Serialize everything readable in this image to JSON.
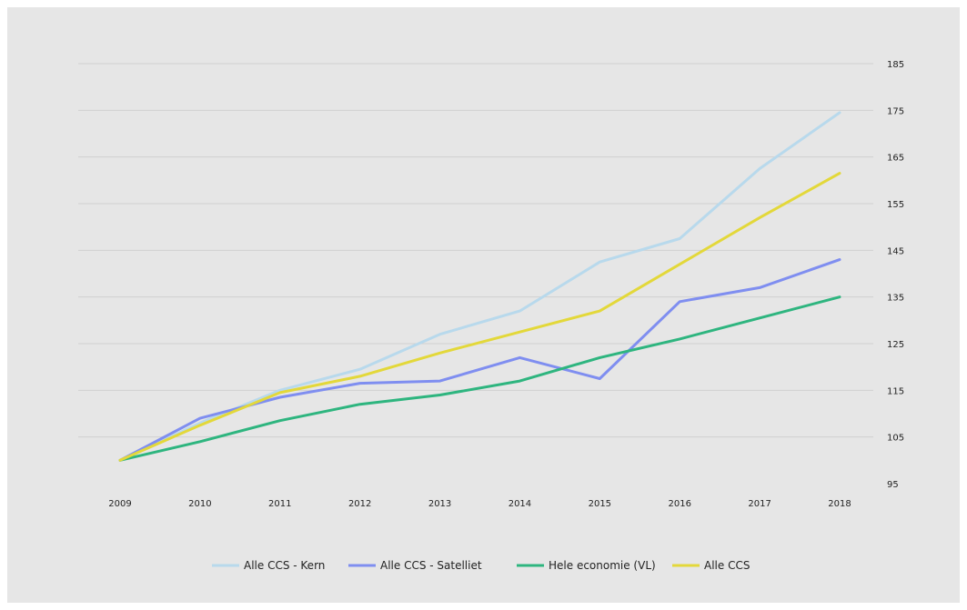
{
  "chart_data": {
    "type": "line",
    "title": "",
    "xlabel": "",
    "ylabel": "",
    "x": [
      "2009",
      "2010",
      "2011",
      "2012",
      "2013",
      "2014",
      "2015",
      "2016",
      "2017",
      "2018"
    ],
    "yticks": [
      "95",
      "105",
      "115",
      "125",
      "135",
      "145",
      "155",
      "165",
      "175",
      "185"
    ],
    "ylim": [
      95,
      185
    ],
    "y_axis_side": "right",
    "grid": true,
    "legend_position": "bottom",
    "series": [
      {
        "name": "Alle CCS - Kern",
        "color": "#b8d9ec",
        "values": [
          100,
          108,
          115,
          119.5,
          127,
          132,
          142.5,
          147.5,
          162.5,
          174.5
        ]
      },
      {
        "name": "Alle CCS - Satelliet",
        "color": "#7f8ef0",
        "values": [
          100,
          109,
          113.5,
          116.5,
          117,
          122,
          117.5,
          134,
          137,
          143
        ]
      },
      {
        "name": "Hele economie (VL)",
        "color": "#2eb57f",
        "values": [
          100,
          104,
          108.5,
          112,
          114,
          117,
          122,
          126,
          130.5,
          135
        ]
      },
      {
        "name": "Alle CCS",
        "color": "#e3d83a",
        "values": [
          100,
          107.5,
          114.5,
          118,
          123,
          127.5,
          132,
          142,
          152,
          161.5
        ]
      }
    ]
  }
}
